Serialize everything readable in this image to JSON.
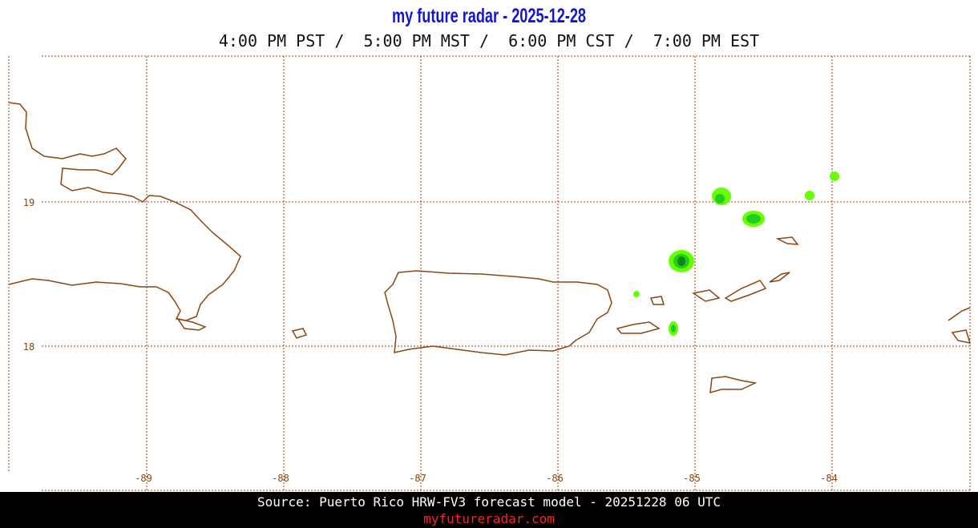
{
  "header": {
    "title": "my future radar - 2025-12-28",
    "subtitle": "4:00 PM PST /  5:00 PM MST /  6:00 PM CST /  7:00 PM EST"
  },
  "map": {
    "longitudes": [
      -89,
      -88,
      -87,
      -86,
      -85,
      -84
    ],
    "latitudes": [
      19,
      18
    ]
  },
  "footer": {
    "source": "Source: Puerto Rico HRW-FV3 forecast model - 20251228 06 UTC",
    "site": "myfutureradar.com"
  }
}
